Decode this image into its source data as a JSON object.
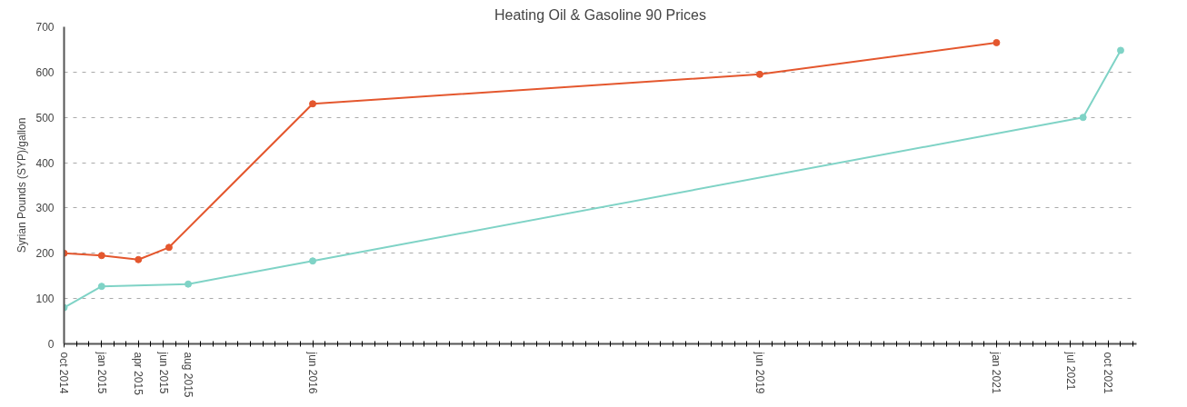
{
  "chart_data": {
    "type": "line",
    "title": "Heating Oil & Gasoline 90 Prices",
    "ylabel": "Syrian Pounds (SYP)/gallon",
    "xlim": [
      "2014-10",
      "2021-12-10"
    ],
    "ylim": [
      0,
      700
    ],
    "yticks": [
      0,
      100,
      200,
      300,
      400,
      500,
      600,
      700
    ],
    "xticks": [
      {
        "value": "2014-10",
        "label": "oct 2014"
      },
      {
        "value": "2015-01",
        "label": "jan 2015"
      },
      {
        "value": "2015-04",
        "label": "apr 2015"
      },
      {
        "value": "2015-06",
        "label": "jun 2015"
      },
      {
        "value": "2015-08",
        "label": "aug 2015"
      },
      {
        "value": "2016-06",
        "label": "jun 2016"
      },
      {
        "value": "2019-06",
        "label": "jun 2019"
      },
      {
        "value": "2021-01",
        "label": "jan 2021"
      },
      {
        "value": "2021-07",
        "label": "jul 2021"
      },
      {
        "value": "2021-10",
        "label": "oct 2021"
      }
    ],
    "grid": "y",
    "marker": "circle",
    "line_style": "solid",
    "series": [
      {
        "color": "#e4572e",
        "x": [
          "2014-10",
          "2015-01",
          "2015-04",
          "2015-06-15",
          "2016-06",
          "2019-06",
          "2021-01"
        ],
        "values": [
          200,
          195,
          186,
          213,
          530,
          595,
          665
        ]
      },
      {
        "color": "#7fd3c6",
        "x": [
          "2014-10",
          "2015-01",
          "2015-08",
          "2016-06",
          "2021-08",
          "2021-11"
        ],
        "values": [
          80,
          127,
          132,
          183,
          500,
          648
        ]
      }
    ]
  }
}
